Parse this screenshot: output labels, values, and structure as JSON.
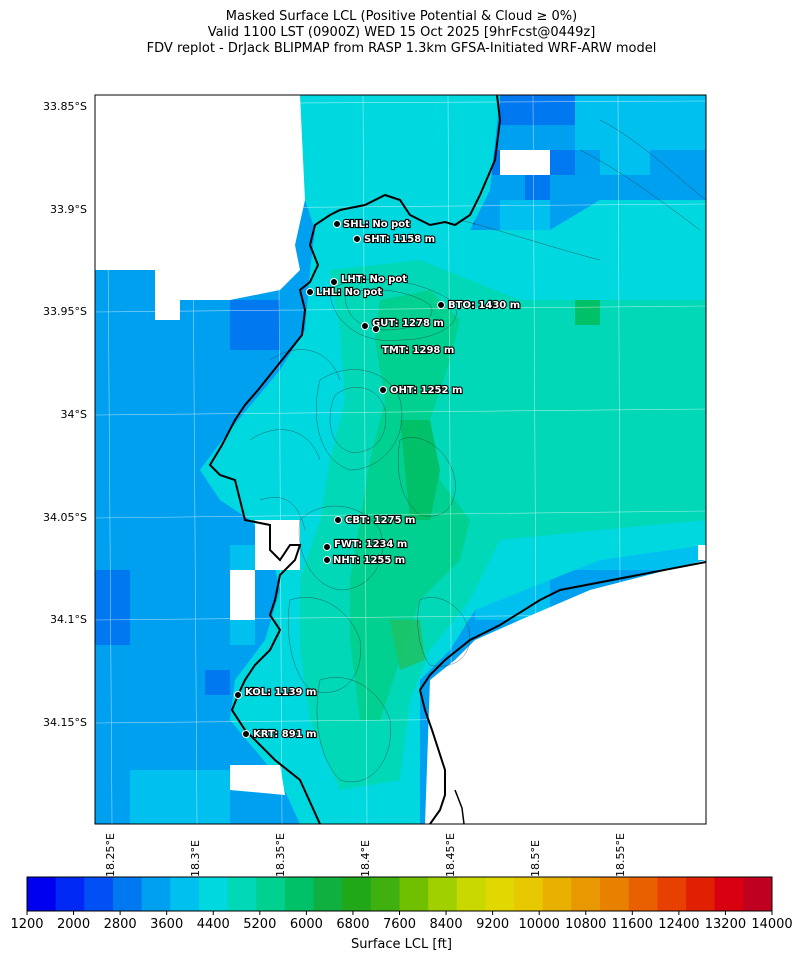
{
  "title": {
    "line1": "Masked Surface LCL (Positive Potential & Cloud ≥ 0%)",
    "line2": "Valid 1100 LST (0900Z) WED 15 Oct 2025 [9hrFcst@0449z]",
    "line3": "FDV replot - DrJack BLIPMAP from RASP 1.3km GFSA-Initiated WRF-ARW model"
  },
  "axes": {
    "lat_ticks": [
      "33.85°S",
      "33.9°S",
      "33.95°S",
      "34°S",
      "34.05°S",
      "34.1°S",
      "34.15°S"
    ],
    "lon_ticks": [
      "18.25°E",
      "18.3°E",
      "18.35°E",
      "18.4°E",
      "18.45°E",
      "18.5°E",
      "18.55°E"
    ]
  },
  "colorbar": {
    "label": "Surface LCL [ft]",
    "ticks": [
      "1200",
      "2000",
      "2800",
      "3600",
      "4400",
      "5200",
      "6000",
      "6800",
      "7600",
      "8400",
      "9200",
      "10000",
      "10800",
      "11600",
      "12400",
      "13200",
      "14000"
    ],
    "colors": [
      "#0000f0",
      "#0028f5",
      "#0050f5",
      "#0078f0",
      "#00a0f0",
      "#00c0f0",
      "#00d8e0",
      "#00d8b8",
      "#00d090",
      "#00c068",
      "#10b040",
      "#20a818",
      "#40b010",
      "#70c000",
      "#a0d000",
      "#c8d800",
      "#e0d800",
      "#e8c800",
      "#e8b000",
      "#e89800",
      "#e88000",
      "#e86000",
      "#e84000",
      "#e02000",
      "#d80010",
      "#c00020"
    ]
  },
  "sites": [
    {
      "code": "SHL",
      "label": "SHL: No pot"
    },
    {
      "code": "SHT",
      "label": "SHT: 1158 m"
    },
    {
      "code": "LHT",
      "label": "LHT: No pot"
    },
    {
      "code": "LHL",
      "label": "LHL: No pot"
    },
    {
      "code": "BTO",
      "label": "BTO: 1430 m"
    },
    {
      "code": "GUT",
      "label": "GUT: 1278 m"
    },
    {
      "code": "TMT",
      "label": "TMT: 1298 m"
    },
    {
      "code": "OHT",
      "label": "OHT: 1252 m"
    },
    {
      "code": "CBT",
      "label": "CBT: 1275 m"
    },
    {
      "code": "FWT",
      "label": "FWT: 1234 m"
    },
    {
      "code": "NHT",
      "label": "NHT: 1255 m"
    },
    {
      "code": "KOL",
      "label": "KOL: 1139 m"
    },
    {
      "code": "KRT",
      "label": "KRT: 891 m"
    }
  ]
}
